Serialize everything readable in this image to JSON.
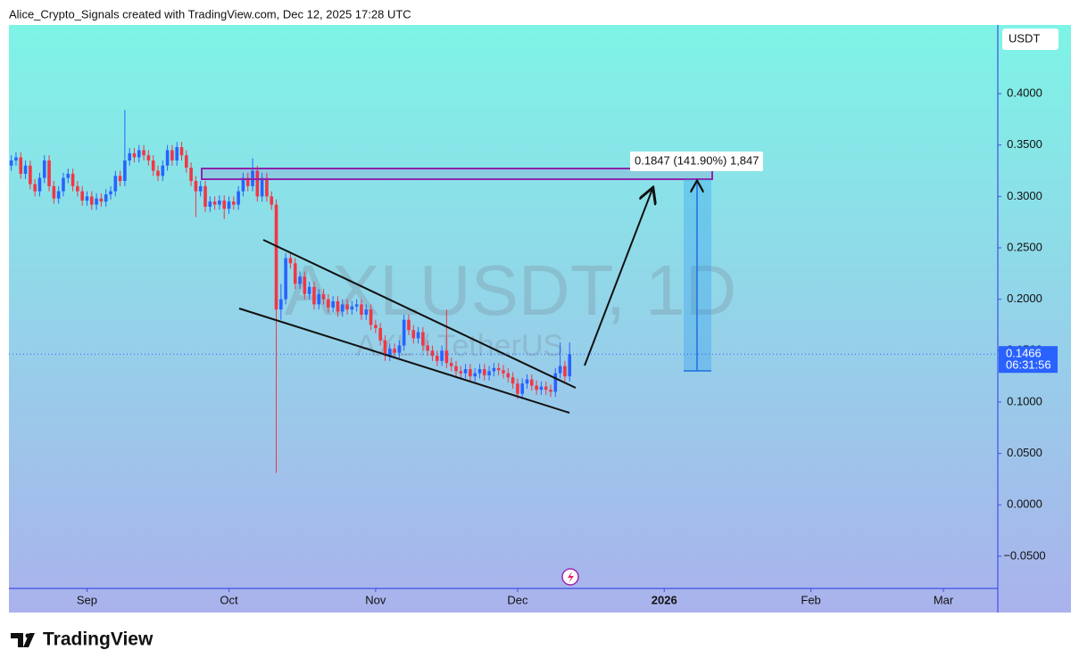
{
  "header": "Alice_Crypto_Signals created with TradingView.com, Dec 12, 2025 17:28 UTC",
  "brand": "TradingView",
  "chart_data": {
    "type": "candlestick",
    "currency": "USDT",
    "watermark": "AXLUSDT, 1D",
    "watermark_subtitle": "AXL / TetherUS",
    "measure_label": "0.1847 (141.90%) 1,847",
    "countdown": "06:31:56",
    "up_color": "#2962ff",
    "down_color": "#f23645",
    "xlim": [
      -16.5,
      192.5
    ],
    "xticks": [
      {
        "value": 0,
        "label": "Sep"
      },
      {
        "value": 30,
        "label": "Oct"
      },
      {
        "value": 61,
        "label": "Nov"
      },
      {
        "value": 91,
        "label": "Dec"
      },
      {
        "value": 122,
        "label": "2026"
      },
      {
        "value": 153,
        "label": "Feb"
      },
      {
        "value": 181,
        "label": "Mar"
      }
    ],
    "ylim": [
      -0.0813,
      0.4668
    ],
    "yticks": [
      {
        "value": -0.05,
        "label": "−0.0500"
      },
      {
        "value": 0,
        "label": "0.0000"
      },
      {
        "value": 0.05,
        "label": "0.0500"
      },
      {
        "value": 0.1,
        "label": "0.1000"
      },
      {
        "value": 0.15,
        "label": "0.1500"
      },
      {
        "value": 0.2,
        "label": "0.2000"
      },
      {
        "value": 0.25,
        "label": "0.2500"
      },
      {
        "value": 0.3,
        "label": "0.3000"
      },
      {
        "value": 0.35,
        "label": "0.3500"
      },
      {
        "value": 0.4,
        "label": "0.4000"
      }
    ],
    "x": [
      -16,
      -15,
      -14,
      -13,
      -12,
      -11,
      -10,
      -9,
      -8,
      -7,
      -6,
      -5,
      -4,
      -3,
      -2,
      -1,
      0,
      1,
      2,
      3,
      4,
      5,
      6,
      7,
      8,
      9,
      10,
      11,
      12,
      13,
      14,
      15,
      16,
      17,
      18,
      19,
      20,
      21,
      22,
      23,
      24,
      25,
      26,
      27,
      28,
      29,
      30,
      31,
      32,
      33,
      34,
      35,
      36,
      37,
      38,
      39,
      40,
      41,
      42,
      43,
      44,
      45,
      46,
      47,
      48,
      49,
      50,
      51,
      52,
      53,
      54,
      55,
      56,
      57,
      58,
      59,
      60,
      61,
      62,
      63,
      64,
      65,
      66,
      67,
      68,
      69,
      70,
      71,
      72,
      73,
      74,
      75,
      76,
      77,
      78,
      79,
      80,
      81,
      82,
      83,
      84,
      85,
      86,
      87,
      88,
      89,
      90,
      91,
      92,
      93,
      94,
      95,
      96,
      97,
      98,
      99,
      100,
      101,
      102
    ],
    "open": [
      0.33,
      0.335,
      0.338,
      0.322,
      0.33,
      0.312,
      0.305,
      0.318,
      0.335,
      0.31,
      0.298,
      0.305,
      0.318,
      0.322,
      0.31,
      0.305,
      0.296,
      0.3,
      0.292,
      0.298,
      0.295,
      0.302,
      0.305,
      0.32,
      0.315,
      0.335,
      0.342,
      0.338,
      0.345,
      0.34,
      0.335,
      0.325,
      0.32,
      0.33,
      0.345,
      0.335,
      0.348,
      0.34,
      0.328,
      0.315,
      0.305,
      0.31,
      0.29,
      0.295,
      0.292,
      0.296,
      0.288,
      0.295,
      0.292,
      0.305,
      0.318,
      0.31,
      0.325,
      0.3,
      0.318,
      0.3,
      0.292,
      0.19,
      0.2,
      0.24,
      0.235,
      0.215,
      0.222,
      0.205,
      0.212,
      0.195,
      0.205,
      0.2,
      0.192,
      0.198,
      0.188,
      0.195,
      0.19,
      0.193,
      0.195,
      0.185,
      0.19,
      0.175,
      0.172,
      0.16,
      0.145,
      0.152,
      0.148,
      0.155,
      0.18,
      0.17,
      0.162,
      0.168,
      0.155,
      0.15,
      0.145,
      0.14,
      0.15,
      0.138,
      0.135,
      0.13,
      0.128,
      0.132,
      0.125,
      0.128,
      0.132,
      0.126,
      0.13,
      0.133,
      0.131,
      0.128,
      0.124,
      0.118,
      0.108,
      0.118,
      0.122,
      0.116,
      0.112,
      0.115,
      0.112,
      0.11,
      0.128,
      0.135,
      0.125
    ],
    "high": [
      0.34,
      0.343,
      0.343,
      0.335,
      0.335,
      0.317,
      0.323,
      0.34,
      0.34,
      0.315,
      0.31,
      0.323,
      0.327,
      0.327,
      0.315,
      0.31,
      0.305,
      0.305,
      0.303,
      0.303,
      0.307,
      0.31,
      0.325,
      0.325,
      0.384,
      0.347,
      0.347,
      0.35,
      0.35,
      0.345,
      0.34,
      0.33,
      0.335,
      0.35,
      0.35,
      0.353,
      0.353,
      0.345,
      0.333,
      0.32,
      0.315,
      0.315,
      0.3,
      0.3,
      0.301,
      0.301,
      0.3,
      0.3,
      0.31,
      0.323,
      0.323,
      0.337,
      0.33,
      0.323,
      0.323,
      0.305,
      0.297,
      0.215,
      0.245,
      0.245,
      0.24,
      0.227,
      0.227,
      0.217,
      0.217,
      0.21,
      0.21,
      0.205,
      0.203,
      0.203,
      0.2,
      0.2,
      0.198,
      0.2,
      0.2,
      0.195,
      0.195,
      0.18,
      0.177,
      0.165,
      0.157,
      0.157,
      0.16,
      0.185,
      0.185,
      0.175,
      0.173,
      0.173,
      0.16,
      0.155,
      0.15,
      0.155,
      0.19,
      0.143,
      0.14,
      0.135,
      0.137,
      0.137,
      0.133,
      0.137,
      0.137,
      0.135,
      0.138,
      0.138,
      0.136,
      0.133,
      0.129,
      0.123,
      0.123,
      0.127,
      0.127,
      0.121,
      0.12,
      0.12,
      0.117,
      0.133,
      0.158,
      0.14,
      0.158
    ],
    "low": [
      0.325,
      0.33,
      0.317,
      0.317,
      0.307,
      0.3,
      0.3,
      0.313,
      0.305,
      0.293,
      0.293,
      0.3,
      0.313,
      0.305,
      0.3,
      0.291,
      0.291,
      0.287,
      0.287,
      0.29,
      0.29,
      0.297,
      0.3,
      0.31,
      0.31,
      0.33,
      0.333,
      0.333,
      0.335,
      0.33,
      0.32,
      0.315,
      0.315,
      0.325,
      0.33,
      0.33,
      0.335,
      0.323,
      0.31,
      0.28,
      0.3,
      0.285,
      0.285,
      0.287,
      0.287,
      0.278,
      0.283,
      0.287,
      0.287,
      0.3,
      0.305,
      0.305,
      0.295,
      0.295,
      0.295,
      0.287,
      0.031,
      0.18,
      0.195,
      0.23,
      0.21,
      0.21,
      0.2,
      0.2,
      0.19,
      0.19,
      0.195,
      0.187,
      0.187,
      0.183,
      0.183,
      0.185,
      0.185,
      0.188,
      0.18,
      0.18,
      0.17,
      0.167,
      0.155,
      0.14,
      0.14,
      0.143,
      0.143,
      0.15,
      0.165,
      0.157,
      0.157,
      0.15,
      0.145,
      0.14,
      0.135,
      0.135,
      0.133,
      0.13,
      0.125,
      0.123,
      0.123,
      0.12,
      0.12,
      0.123,
      0.121,
      0.121,
      0.125,
      0.126,
      0.123,
      0.119,
      0.113,
      0.103,
      0.103,
      0.113,
      0.111,
      0.107,
      0.107,
      0.107,
      0.105,
      0.105,
      0.123,
      0.12,
      0.12
    ],
    "close": [
      0.335,
      0.338,
      0.322,
      0.33,
      0.312,
      0.305,
      0.318,
      0.335,
      0.31,
      0.298,
      0.305,
      0.318,
      0.322,
      0.31,
      0.305,
      0.296,
      0.3,
      0.292,
      0.298,
      0.295,
      0.302,
      0.305,
      0.32,
      0.315,
      0.335,
      0.342,
      0.338,
      0.345,
      0.34,
      0.335,
      0.325,
      0.32,
      0.33,
      0.345,
      0.335,
      0.348,
      0.34,
      0.328,
      0.315,
      0.305,
      0.31,
      0.29,
      0.295,
      0.292,
      0.296,
      0.288,
      0.295,
      0.292,
      0.305,
      0.318,
      0.31,
      0.325,
      0.3,
      0.318,
      0.3,
      0.292,
      0.19,
      0.2,
      0.24,
      0.235,
      0.215,
      0.222,
      0.205,
      0.212,
      0.195,
      0.205,
      0.2,
      0.192,
      0.198,
      0.188,
      0.195,
      0.19,
      0.193,
      0.195,
      0.185,
      0.19,
      0.175,
      0.172,
      0.16,
      0.145,
      0.152,
      0.148,
      0.155,
      0.18,
      0.17,
      0.162,
      0.168,
      0.155,
      0.15,
      0.145,
      0.14,
      0.15,
      0.138,
      0.135,
      0.13,
      0.128,
      0.132,
      0.125,
      0.128,
      0.132,
      0.126,
      0.13,
      0.133,
      0.131,
      0.128,
      0.124,
      0.118,
      0.108,
      0.118,
      0.122,
      0.116,
      0.112,
      0.115,
      0.112,
      0.11,
      0.128,
      0.135,
      0.125,
      0.1466
    ]
  }
}
